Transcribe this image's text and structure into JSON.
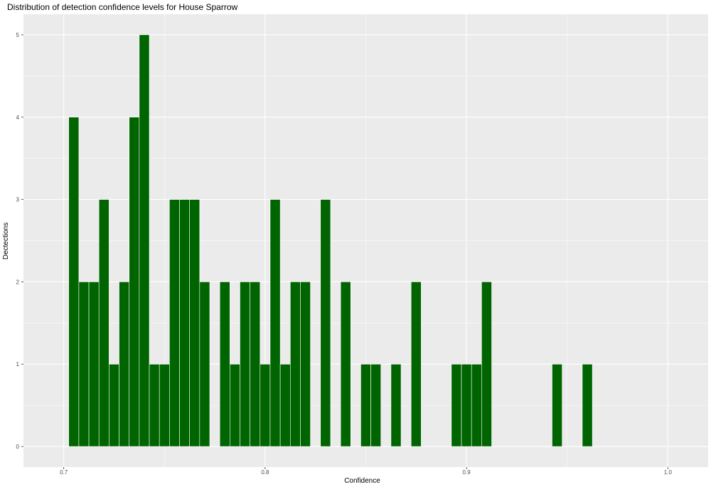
{
  "chart_data": {
    "type": "bar",
    "title": "Distribution of detection confidence levels for House Sparrow",
    "xlabel": "Confidence",
    "ylabel": "Dectections",
    "xlim": [
      0.68,
      1.02
    ],
    "ylim": [
      -0.25,
      5.25
    ],
    "x_ticks": [
      0.7,
      0.8,
      0.9,
      1.0
    ],
    "x_tick_labels": [
      "0.7",
      "0.8",
      "0.9",
      "1.0"
    ],
    "y_ticks": [
      0,
      1,
      2,
      3,
      4,
      5
    ],
    "y_tick_labels": [
      "0",
      "1",
      "2",
      "3",
      "4",
      "5"
    ],
    "bin_width": 0.005,
    "x": [
      0.705,
      0.71,
      0.715,
      0.72,
      0.725,
      0.73,
      0.735,
      0.74,
      0.745,
      0.75,
      0.755,
      0.76,
      0.765,
      0.77,
      0.78,
      0.785,
      0.79,
      0.795,
      0.8,
      0.805,
      0.81,
      0.815,
      0.82,
      0.83,
      0.84,
      0.85,
      0.855,
      0.865,
      0.875,
      0.895,
      0.9,
      0.905,
      0.91,
      0.945,
      0.96
    ],
    "values": [
      4,
      2,
      2,
      3,
      1,
      2,
      4,
      5,
      1,
      1,
      3,
      3,
      3,
      2,
      2,
      1,
      2,
      2,
      1,
      3,
      1,
      2,
      2,
      3,
      2,
      1,
      1,
      1,
      2,
      1,
      1,
      1,
      2,
      1,
      1
    ],
    "bar_color": "#006400",
    "bar_outline": "#ffffff",
    "panel_background": "#ebebeb",
    "grid": true,
    "legend": "none"
  }
}
